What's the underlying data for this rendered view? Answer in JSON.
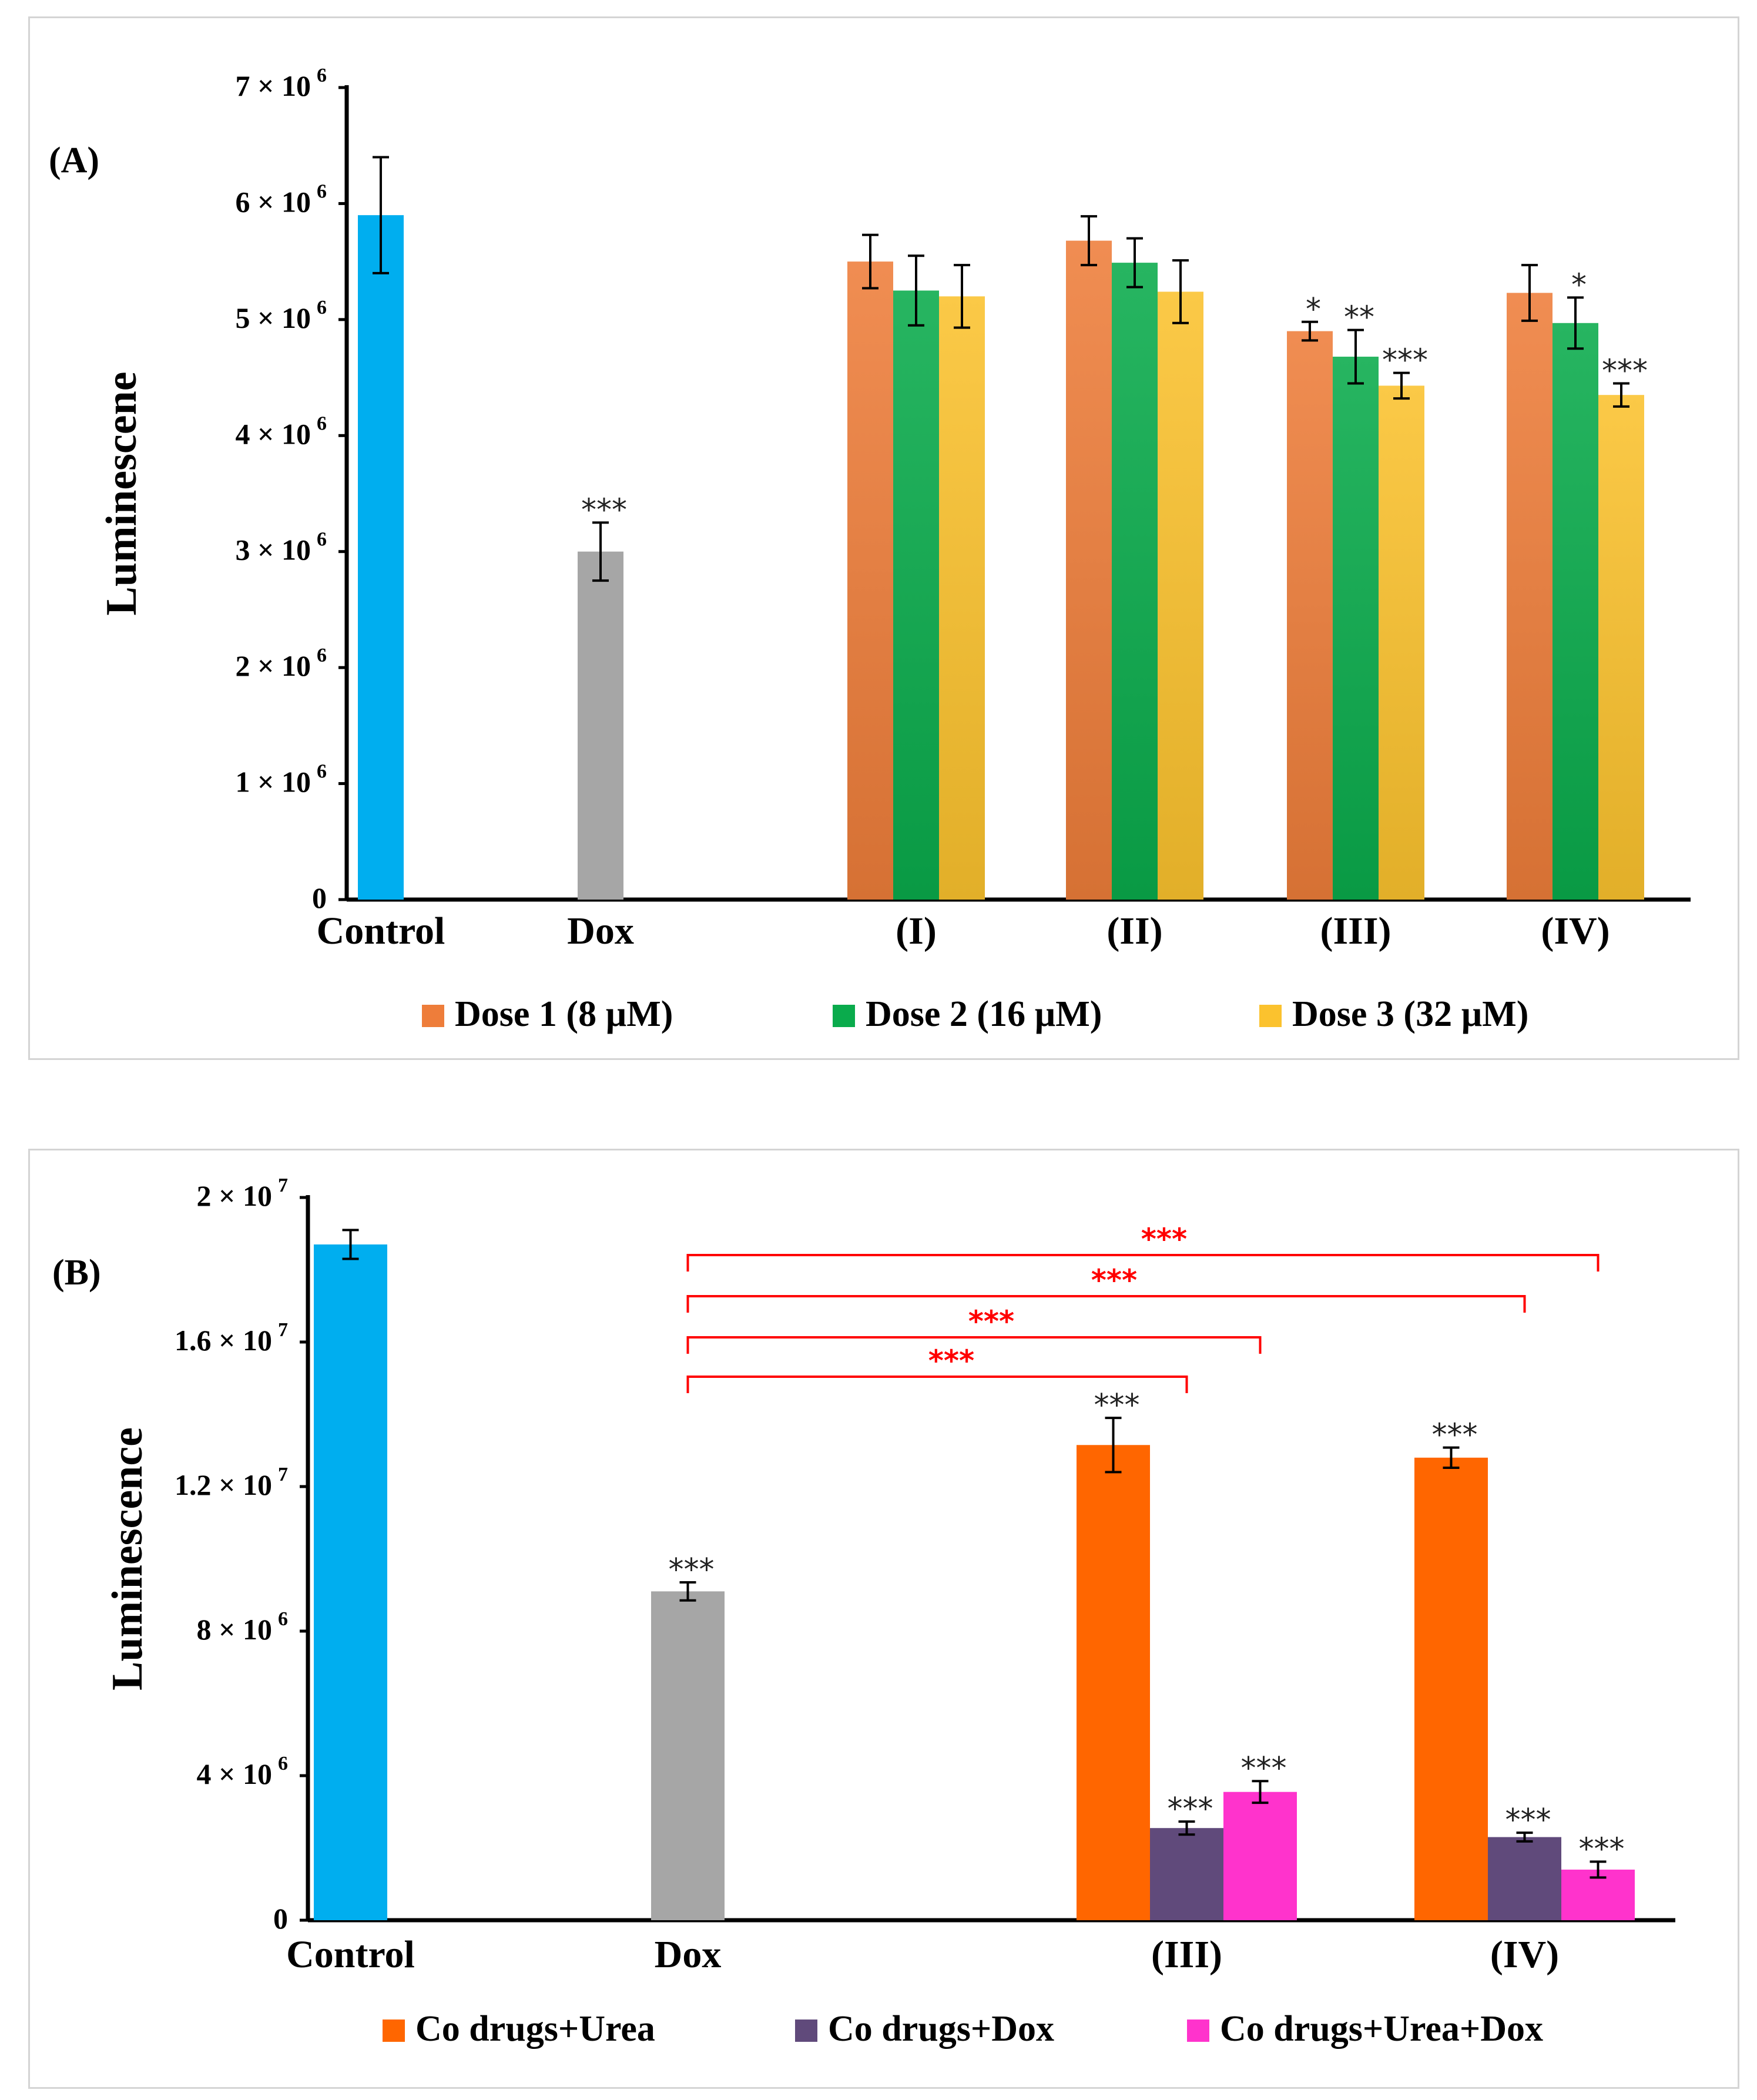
{
  "chart_data": [
    {
      "panel_label": "(A)",
      "type": "bar",
      "ylabel": "Luminescene",
      "xlabel": "",
      "ylim": [
        0,
        7000000
      ],
      "yticks": [
        0,
        1000000,
        2000000,
        3000000,
        4000000,
        5000000,
        6000000,
        7000000
      ],
      "ytick_labels": [
        {
          "base": "0",
          "exp": ""
        },
        {
          "base": "1 × 10",
          "exp": "6"
        },
        {
          "base": "2 × 10",
          "exp": "6"
        },
        {
          "base": "3 × 10",
          "exp": "6"
        },
        {
          "base": "4 × 10",
          "exp": "6"
        },
        {
          "base": "5 × 10",
          "exp": "6"
        },
        {
          "base": "6 × 10",
          "exp": "6"
        },
        {
          "base": "7 × 10",
          "exp": "6"
        }
      ],
      "grid": false,
      "legend_position": "bottom",
      "legend": [
        {
          "label": "Dose 1 (8 µM)",
          "color": "#ee7d3a"
        },
        {
          "label": "Dose 2 (16 µM)",
          "color": "#0aab4c"
        },
        {
          "label": "Dose 3 (32 µM)",
          "color": "#fbc22e"
        }
      ],
      "groups": [
        {
          "label": "Control",
          "bars": [
            {
              "series": "Control",
              "value": 5900000,
              "error": 500000,
              "color": "#00aeef",
              "sig": ""
            }
          ]
        },
        {
          "label": "Dox",
          "bars": [
            {
              "series": "Dox",
              "value": 3000000,
              "error": 250000,
              "color": "#a6a6a6",
              "sig": "***"
            }
          ]
        },
        {
          "label": "(I)",
          "bars": [
            {
              "series": "Dose 1 (8 µM)",
              "value": 5500000,
              "error": 230000,
              "color": "#ee7d3a",
              "sig": ""
            },
            {
              "series": "Dose 2 (16 µM)",
              "value": 5250000,
              "error": 300000,
              "color": "#0aab4c",
              "sig": ""
            },
            {
              "series": "Dose 3 (32 µM)",
              "value": 5200000,
              "error": 270000,
              "color": "#fbc22e",
              "sig": ""
            }
          ]
        },
        {
          "label": "(II)",
          "bars": [
            {
              "series": "Dose 1 (8 µM)",
              "value": 5680000,
              "error": 210000,
              "color": "#ee7d3a",
              "sig": ""
            },
            {
              "series": "Dose 2 (16 µM)",
              "value": 5490000,
              "error": 210000,
              "color": "#0aab4c",
              "sig": ""
            },
            {
              "series": "Dose 3 (32 µM)",
              "value": 5240000,
              "error": 270000,
              "color": "#fbc22e",
              "sig": ""
            }
          ]
        },
        {
          "label": "(III)",
          "bars": [
            {
              "series": "Dose 1 (8 µM)",
              "value": 4900000,
              "error": 80000,
              "color": "#ee7d3a",
              "sig": "*"
            },
            {
              "series": "Dose 2 (16 µM)",
              "value": 4680000,
              "error": 230000,
              "color": "#0aab4c",
              "sig": "**"
            },
            {
              "series": "Dose 3 (32 µM)",
              "value": 4430000,
              "error": 110000,
              "color": "#fbc22e",
              "sig": "***"
            }
          ]
        },
        {
          "label": "(IV)",
          "bars": [
            {
              "series": "Dose 1 (8 µM)",
              "value": 5230000,
              "error": 240000,
              "color": "#ee7d3a",
              "sig": ""
            },
            {
              "series": "Dose 2 (16 µM)",
              "value": 4970000,
              "error": 220000,
              "color": "#0aab4c",
              "sig": "*"
            },
            {
              "series": "Dose 3 (32 µM)",
              "value": 4350000,
              "error": 100000,
              "color": "#fbc22e",
              "sig": "***"
            }
          ]
        }
      ],
      "brackets": []
    },
    {
      "panel_label": "(B)",
      "type": "bar",
      "ylabel": "Luminescence",
      "xlabel": "",
      "ylim": [
        0,
        20000000
      ],
      "yticks": [
        0,
        4000000,
        8000000,
        12000000,
        16000000,
        20000000
      ],
      "ytick_labels": [
        {
          "base": "0",
          "exp": ""
        },
        {
          "base": "4 × 10",
          "exp": "6"
        },
        {
          "base": "8 × 10",
          "exp": "6"
        },
        {
          "base": "1.2 × 10",
          "exp": "7"
        },
        {
          "base": "1.6 × 10",
          "exp": "7"
        },
        {
          "base": "2 × 10",
          "exp": "7"
        }
      ],
      "grid": false,
      "legend_position": "bottom",
      "legend": [
        {
          "label": "Co drugs+Urea",
          "color": "#ff6600"
        },
        {
          "label": "Co drugs+Dox",
          "color": "#604a7b"
        },
        {
          "label": "Co drugs+Urea+Dox",
          "color": "#ff33cc"
        }
      ],
      "groups": [
        {
          "label": "Control",
          "bars": [
            {
              "series": "Control",
              "value": 18700000,
              "error": 400000,
              "color": "#00aeef",
              "sig": ""
            }
          ]
        },
        {
          "label": "Dox",
          "bars": [
            {
              "series": "Dox",
              "value": 9100000,
              "error": 250000,
              "color": "#a6a6a6",
              "sig": "***"
            }
          ]
        },
        {
          "label": "(III)",
          "bars": [
            {
              "series": "Co drugs+Urea",
              "value": 13150000,
              "error": 750000,
              "color": "#ff6600",
              "sig": "***"
            },
            {
              "series": "Co drugs+Dox",
              "value": 2550000,
              "error": 180000,
              "color": "#604a7b",
              "sig": "***"
            },
            {
              "series": "Co drugs+Urea+Dox",
              "value": 3550000,
              "error": 300000,
              "color": "#ff33cc",
              "sig": "***"
            }
          ]
        },
        {
          "label": "(IV)",
          "bars": [
            {
              "series": "Co drugs+Urea",
              "value": 12800000,
              "error": 280000,
              "color": "#ff6600",
              "sig": "***"
            },
            {
              "series": "Co drugs+Dox",
              "value": 2300000,
              "error": 120000,
              "color": "#604a7b",
              "sig": "***"
            },
            {
              "series": "Co drugs+Urea+Dox",
              "value": 1400000,
              "error": 220000,
              "color": "#ff33cc",
              "sig": "***"
            }
          ]
        }
      ],
      "brackets": [
        {
          "from_group": 1,
          "to_group": 2,
          "to_bar": 1,
          "label": "***",
          "color": "#ff0000",
          "level": 0
        },
        {
          "from_group": 1,
          "to_group": 2,
          "to_bar": 2,
          "label": "***",
          "color": "#ff0000",
          "level": 1
        },
        {
          "from_group": 1,
          "to_group": 3,
          "to_bar": 1,
          "label": "***",
          "color": "#ff0000",
          "level": 2
        },
        {
          "from_group": 1,
          "to_group": 3,
          "to_bar": 2,
          "label": "***",
          "color": "#ff0000",
          "level": 3
        }
      ]
    }
  ]
}
